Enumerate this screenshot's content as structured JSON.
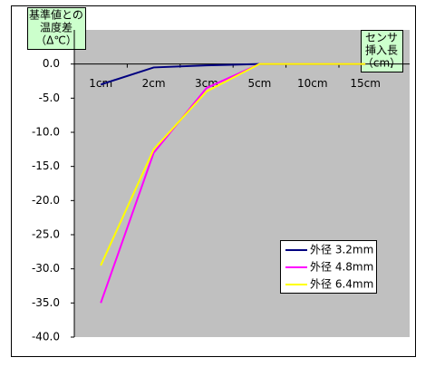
{
  "chart_data": {
    "type": "line",
    "y_label": [
      "基準値との",
      "温度差",
      "（Δ℃）"
    ],
    "x_label": [
      "センサ",
      "挿入長",
      "（cm）"
    ],
    "categories": [
      "1cm",
      "2cm",
      "3cm",
      "5cm",
      "10cm",
      "15cm"
    ],
    "series": [
      {
        "name": "外径 3.2mm",
        "color": "#000080",
        "values": [
          -3.0,
          -0.5,
          -0.2,
          0,
          0,
          0
        ]
      },
      {
        "name": "外径 4.8mm",
        "color": "#ff00ff",
        "values": [
          -35.0,
          -13.0,
          -3.5,
          0,
          0,
          0
        ]
      },
      {
        "name": "外径 6.4mm",
        "color": "#ffff00",
        "values": [
          -29.5,
          -12.5,
          -4.0,
          0,
          0,
          0
        ]
      }
    ],
    "ylim": [
      -40,
      5
    ],
    "yticks": [
      {
        "value": -40,
        "label": "-40.0"
      },
      {
        "value": -35,
        "label": "-35.0"
      },
      {
        "value": -30,
        "label": "-30.0"
      },
      {
        "value": -25,
        "label": "-25.0"
      },
      {
        "value": -20,
        "label": "-20.0"
      },
      {
        "value": -15,
        "label": "-15.0"
      },
      {
        "value": -10,
        "label": "-10.0"
      },
      {
        "value": -5,
        "label": "-5.0"
      },
      {
        "value": 0,
        "label": "0.0"
      }
    ],
    "legend": "lower right"
  }
}
